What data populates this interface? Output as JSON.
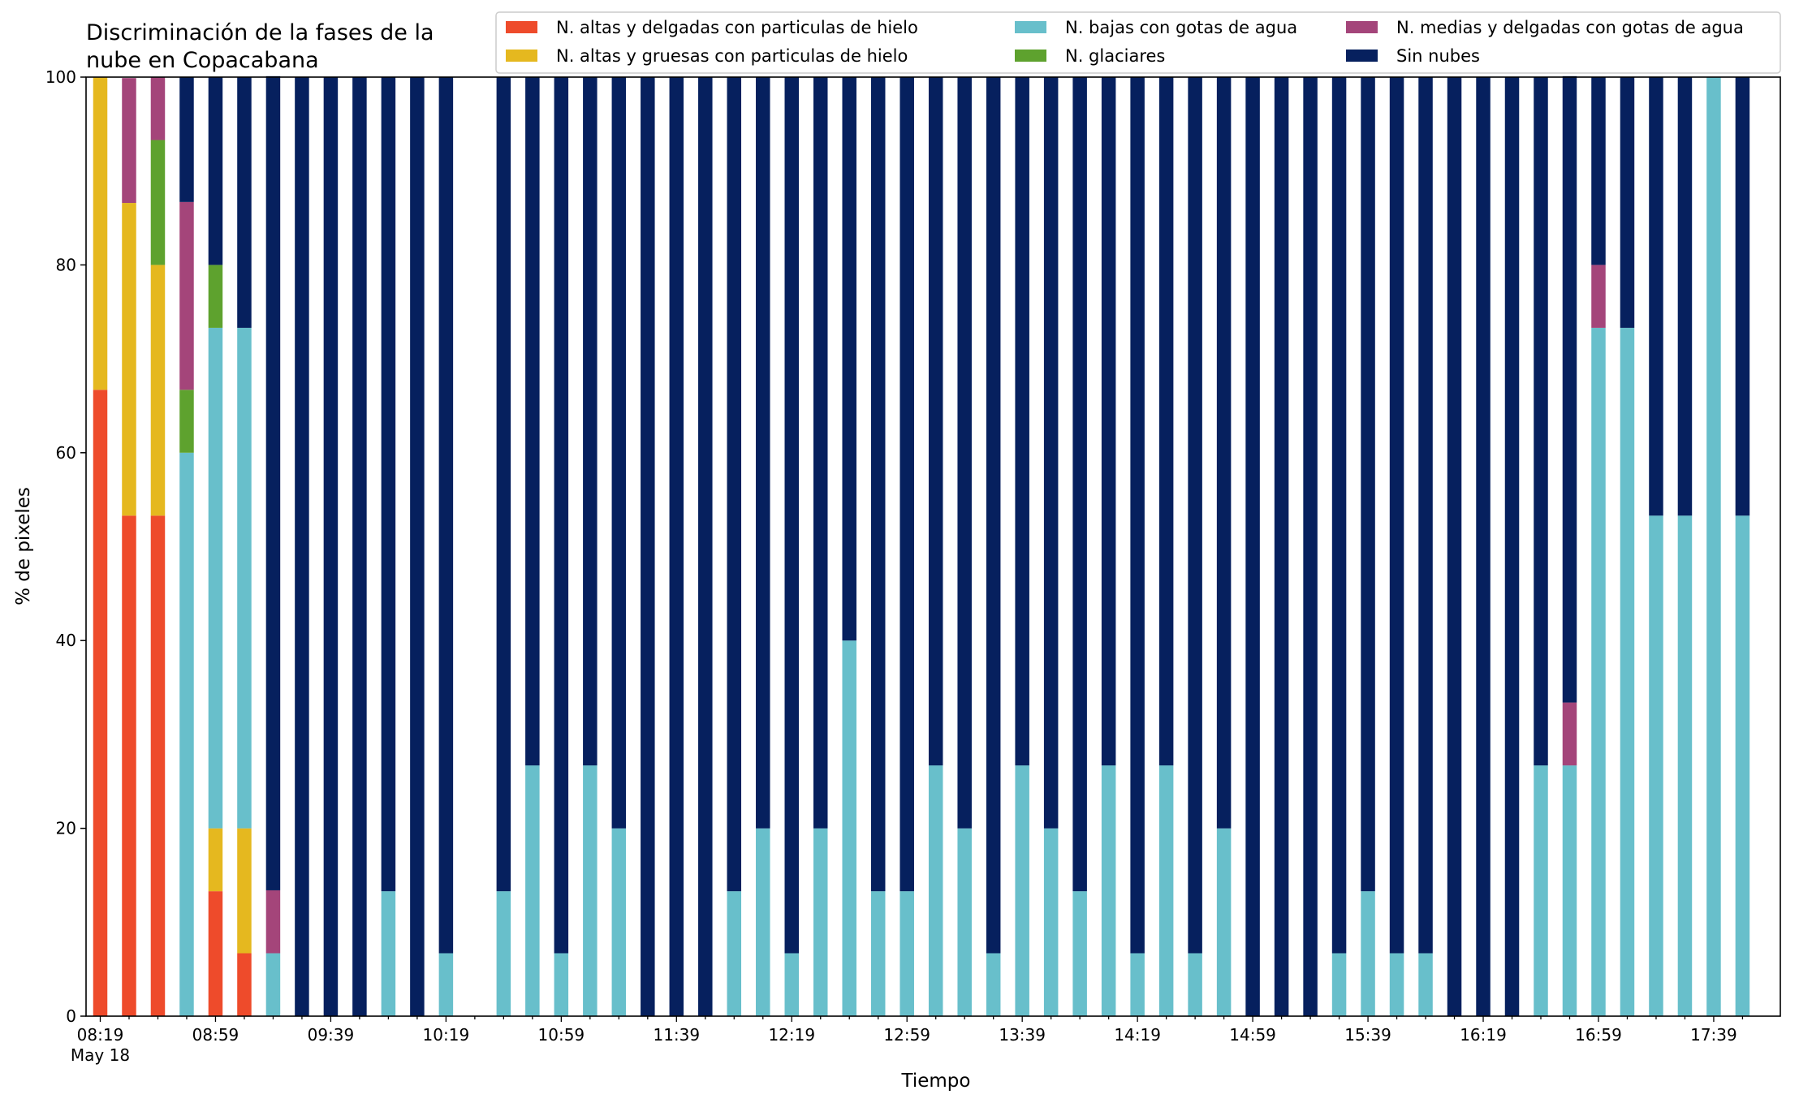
{
  "chart_data": {
    "type": "bar",
    "stacked": true,
    "title": "Discriminación de la fases de la\nnube en Copacabana",
    "xlabel": "Tiempo",
    "ylabel": "% de pixeles",
    "ylim": [
      0,
      100
    ],
    "yticks": [
      0,
      20,
      40,
      60,
      80,
      100
    ],
    "xtick_labels": [
      "08:19",
      "08:59",
      "09:39",
      "10:19",
      "10:59",
      "11:39",
      "12:19",
      "12:59",
      "13:39",
      "14:19",
      "14:59",
      "15:39",
      "16:19",
      "16:59",
      "17:39"
    ],
    "xtick_sublabel": "May 18",
    "grid": false,
    "legend_placement": "top-right",
    "categories": [
      "08:19",
      "08:29",
      "08:39",
      "08:49",
      "08:59",
      "09:09",
      "09:19",
      "09:29",
      "09:39",
      "09:49",
      "09:59",
      "10:09",
      "10:19",
      "10:29",
      "10:39",
      "10:49",
      "10:59",
      "11:09",
      "11:19",
      "11:29",
      "11:39",
      "11:49",
      "11:59",
      "12:09",
      "12:19",
      "12:29",
      "12:39",
      "12:49",
      "12:59",
      "13:09",
      "13:19",
      "13:29",
      "13:39",
      "13:49",
      "13:59",
      "14:09",
      "14:19",
      "14:29",
      "14:39",
      "14:49",
      "14:59",
      "15:09",
      "15:19",
      "15:29",
      "15:39",
      "15:49",
      "15:59",
      "16:09",
      "16:19",
      "16:29",
      "16:39",
      "16:49",
      "16:59",
      "17:09",
      "17:19",
      "17:29",
      "17:39",
      "17:49"
    ],
    "series": [
      {
        "name": "N. altas y delgadas con particulas de hielo",
        "color": "#ee4b2b",
        "values": [
          66.7,
          53.3,
          53.3,
          0,
          13.3,
          6.7,
          0,
          0,
          0,
          0,
          0,
          0,
          0,
          0,
          0,
          0,
          0,
          0,
          0,
          0,
          0,
          0,
          0,
          0,
          0,
          0,
          0,
          0,
          0,
          0,
          0,
          0,
          0,
          0,
          0,
          0,
          0,
          0,
          0,
          0,
          0,
          0,
          0,
          0,
          0,
          0,
          0,
          0,
          0,
          0,
          0,
          0,
          0,
          0,
          0,
          0,
          0,
          0
        ]
      },
      {
        "name": "N. altas y gruesas con particulas de hielo",
        "color": "#e5b81f",
        "values": [
          33.3,
          33.3,
          26.7,
          0,
          6.7,
          13.3,
          0,
          0,
          0,
          0,
          0,
          0,
          0,
          0,
          0,
          0,
          0,
          0,
          0,
          0,
          0,
          0,
          0,
          0,
          0,
          0,
          0,
          0,
          0,
          0,
          0,
          0,
          0,
          0,
          0,
          0,
          0,
          0,
          0,
          0,
          0,
          0,
          0,
          0,
          0,
          0,
          0,
          0,
          0,
          0,
          0,
          0,
          0,
          0,
          0,
          0,
          0,
          0
        ]
      },
      {
        "name": "N. bajas con gotas de agua",
        "color": "#68bfcb",
        "values": [
          0,
          0,
          0,
          60,
          53.3,
          53.3,
          6.7,
          0,
          0,
          0,
          13.3,
          0,
          6.7,
          0,
          13.3,
          26.7,
          6.7,
          26.7,
          20,
          0,
          0,
          0,
          13.3,
          20,
          6.7,
          20,
          40,
          13.3,
          13.3,
          26.7,
          20,
          6.7,
          26.7,
          20,
          13.3,
          26.7,
          6.7,
          26.7,
          6.7,
          20,
          0,
          0,
          0,
          6.7,
          13.3,
          6.7,
          6.7,
          0,
          0,
          0,
          26.7,
          26.7,
          73.3,
          73.3,
          53.3,
          53.3,
          100,
          53.3
        ]
      },
      {
        "name": "N. glaciares",
        "color": "#5ea22e",
        "values": [
          0,
          0,
          13.3,
          6.7,
          6.7,
          0,
          0,
          0,
          0,
          0,
          0,
          0,
          0,
          0,
          0,
          0,
          0,
          0,
          0,
          0,
          0,
          0,
          0,
          0,
          0,
          0,
          0,
          0,
          0,
          0,
          0,
          0,
          0,
          0,
          0,
          0,
          0,
          0,
          0,
          0,
          0,
          0,
          0,
          0,
          0,
          0,
          0,
          0,
          0,
          0,
          0,
          0,
          0,
          0,
          0,
          0,
          0,
          0
        ]
      },
      {
        "name": "N. medias y delgadas con gotas de agua",
        "color": "#a4457a",
        "values": [
          0,
          13.3,
          6.7,
          20,
          0,
          0,
          6.7,
          0,
          0,
          0,
          0,
          0,
          0,
          0,
          0,
          0,
          0,
          0,
          0,
          0,
          0,
          0,
          0,
          0,
          0,
          0,
          0,
          0,
          0,
          0,
          0,
          0,
          0,
          0,
          0,
          0,
          0,
          0,
          0,
          0,
          0,
          0,
          0,
          0,
          0,
          0,
          0,
          0,
          0,
          0,
          0,
          6.7,
          6.7,
          0,
          0,
          0,
          0,
          0
        ]
      },
      {
        "name": "Sin nubes",
        "color": "#06205e",
        "values": [
          0,
          0,
          0,
          13.3,
          20,
          26.7,
          86.7,
          100,
          100,
          100,
          86.7,
          100,
          93.3,
          0,
          86.7,
          73.3,
          93.3,
          73.3,
          80,
          100,
          100,
          100,
          86.7,
          80,
          93.3,
          80,
          60,
          86.7,
          86.7,
          73.3,
          80,
          93.3,
          73.3,
          80,
          86.7,
          73.3,
          93.3,
          73.3,
          93.3,
          80,
          100,
          100,
          100,
          93.3,
          86.7,
          93.3,
          93.3,
          100,
          100,
          100,
          73.3,
          66.7,
          20,
          26.7,
          46.7,
          46.7,
          0,
          46.7
        ]
      }
    ]
  }
}
